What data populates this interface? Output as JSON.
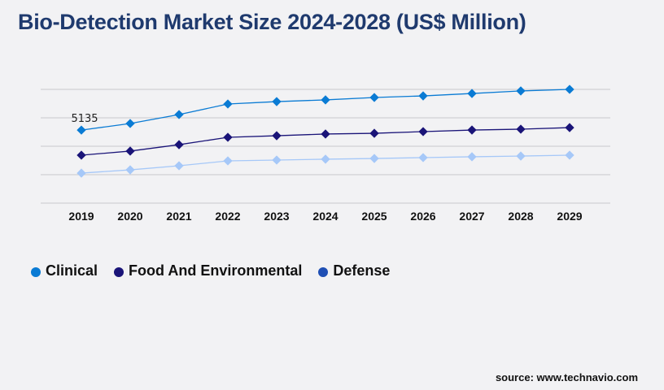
{
  "title": "Bio-Detection Market Size 2024-2028 (US$ Million)",
  "source": "source: www.technavio.com",
  "chart_data": {
    "type": "line",
    "title": "Bio-Detection Market Size 2024-2028 (US$ Million)",
    "xlabel": "",
    "ylabel": "",
    "categories": [
      "2019",
      "2020",
      "2021",
      "2022",
      "2023",
      "2024",
      "2025",
      "2026",
      "2027",
      "2028",
      "2029"
    ],
    "ylim": [
      0,
      8000
    ],
    "grid": true,
    "legend_position": "bottom-left",
    "annotations": [
      {
        "series": "Clinical",
        "category": "2019",
        "text": "5135"
      }
    ],
    "series": [
      {
        "name": "Clinical",
        "line_color": "#0a7bd4",
        "legend_color": "#0a7bd4",
        "values": [
          5135,
          5600,
          6230,
          6970,
          7140,
          7260,
          7430,
          7540,
          7710,
          7890,
          8000
        ]
      },
      {
        "name": "Food And Environmental",
        "line_color": "#1a1478",
        "legend_color": "#1a1478",
        "values": [
          3370,
          3660,
          4110,
          4630,
          4740,
          4860,
          4910,
          5030,
          5140,
          5200,
          5310
        ]
      },
      {
        "name": "Defense",
        "line_color": "#a6c8f8",
        "legend_color": "#1f4fb4",
        "values": [
          2110,
          2340,
          2630,
          2970,
          3030,
          3090,
          3140,
          3200,
          3260,
          3310,
          3370
        ]
      }
    ]
  }
}
